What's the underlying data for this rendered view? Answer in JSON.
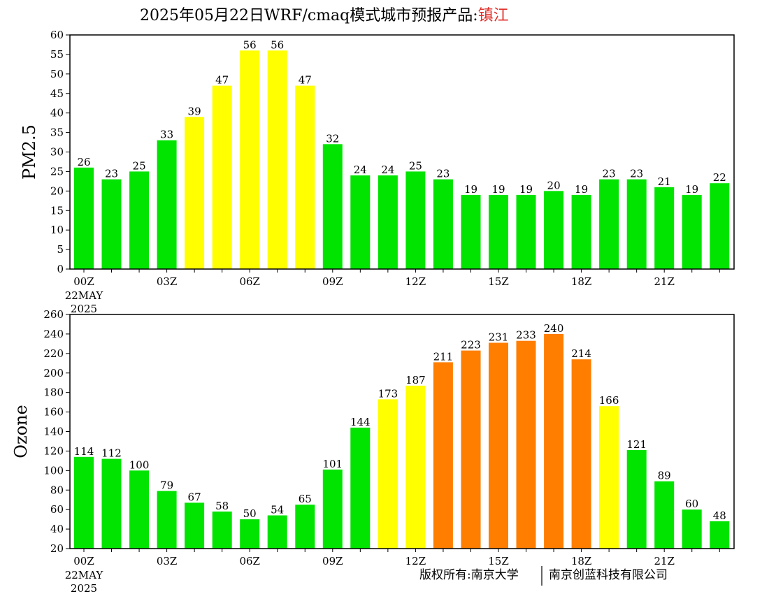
{
  "header": {
    "title_prefix": "2025年05月22日WRF/cmaq模式城市预报产品:",
    "city": "镇江"
  },
  "footer": {
    "copyright_left": "版权所有:南京大学",
    "copyright_right": "南京创蓝科技有限公司"
  },
  "colors": {
    "green": "#00e400",
    "yellow": "#ffff00",
    "orange": "#ff7e00",
    "city_text": "#e0302a"
  },
  "chart_data": [
    {
      "type": "bar",
      "ylabel": "PM2.5",
      "ylim": [
        0,
        60
      ],
      "ytick_step": 5,
      "x_ticks": [
        {
          "hour": 0,
          "label": "00Z",
          "sub": [
            "22MAY",
            "2025"
          ]
        },
        {
          "hour": 3,
          "label": "03Z"
        },
        {
          "hour": 6,
          "label": "06Z"
        },
        {
          "hour": 9,
          "label": "09Z"
        },
        {
          "hour": 12,
          "label": "12Z"
        },
        {
          "hour": 15,
          "label": "15Z"
        },
        {
          "hour": 18,
          "label": "18Z"
        },
        {
          "hour": 21,
          "label": "21Z"
        }
      ],
      "hours": [
        0,
        1,
        2,
        3,
        4,
        5,
        6,
        7,
        8,
        9,
        10,
        11,
        12,
        13,
        14,
        15,
        16,
        17,
        18,
        19,
        20,
        21,
        22,
        23
      ],
      "values": [
        26,
        23,
        25,
        33,
        39,
        47,
        56,
        56,
        47,
        32,
        24,
        24,
        25,
        23,
        19,
        19,
        19,
        20,
        19,
        23,
        23,
        21,
        19,
        22
      ],
      "bar_colors": [
        "green",
        "green",
        "green",
        "green",
        "yellow",
        "yellow",
        "yellow",
        "yellow",
        "yellow",
        "green",
        "green",
        "green",
        "green",
        "green",
        "green",
        "green",
        "green",
        "green",
        "green",
        "green",
        "green",
        "green",
        "green",
        "green"
      ]
    },
    {
      "type": "bar",
      "ylabel": "Ozone",
      "ylim": [
        20,
        260
      ],
      "ytick_step": 20,
      "x_ticks": [
        {
          "hour": 0,
          "label": "00Z",
          "sub": [
            "22MAY",
            "2025"
          ]
        },
        {
          "hour": 3,
          "label": "03Z"
        },
        {
          "hour": 6,
          "label": "06Z"
        },
        {
          "hour": 9,
          "label": "09Z"
        },
        {
          "hour": 12,
          "label": "12Z"
        },
        {
          "hour": 15,
          "label": "15Z"
        },
        {
          "hour": 18,
          "label": "18Z"
        },
        {
          "hour": 21,
          "label": "21Z"
        }
      ],
      "hours": [
        0,
        1,
        2,
        3,
        4,
        5,
        6,
        7,
        8,
        9,
        10,
        11,
        12,
        13,
        14,
        15,
        16,
        17,
        18,
        19,
        20,
        21,
        22,
        23
      ],
      "values": [
        114,
        112,
        100,
        79,
        67,
        58,
        50,
        54,
        65,
        101,
        144,
        173,
        187,
        211,
        223,
        231,
        233,
        240,
        214,
        166,
        121,
        89,
        60,
        48
      ],
      "bar_colors": [
        "green",
        "green",
        "green",
        "green",
        "green",
        "green",
        "green",
        "green",
        "green",
        "green",
        "green",
        "yellow",
        "yellow",
        "orange",
        "orange",
        "orange",
        "orange",
        "orange",
        "orange",
        "yellow",
        "green",
        "green",
        "green",
        "green"
      ]
    }
  ]
}
